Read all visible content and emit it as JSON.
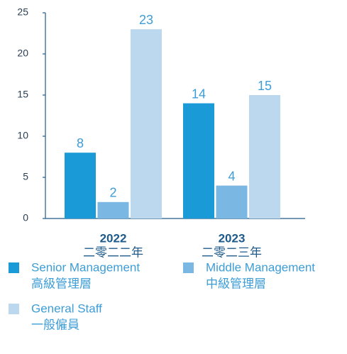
{
  "chart_data": {
    "type": "bar",
    "categories": [
      "2022",
      "2023"
    ],
    "categories_zh": [
      "二零二二年",
      "二零二三年"
    ],
    "series": [
      {
        "name": "Senior Management",
        "name_zh": "高級管理層",
        "color": "#1a9ad6",
        "values": [
          8,
          14
        ]
      },
      {
        "name": "Middle Management",
        "name_zh": "中級管理層",
        "color": "#7ab8e3",
        "values": [
          2,
          4
        ]
      },
      {
        "name": "General Staff",
        "name_zh": "一般僱員",
        "color": "#bcd8ef",
        "values": [
          23,
          15
        ]
      }
    ],
    "ylim": [
      0,
      25
    ],
    "yticks": [
      0,
      5,
      10,
      15,
      20,
      25
    ],
    "grid": false
  }
}
